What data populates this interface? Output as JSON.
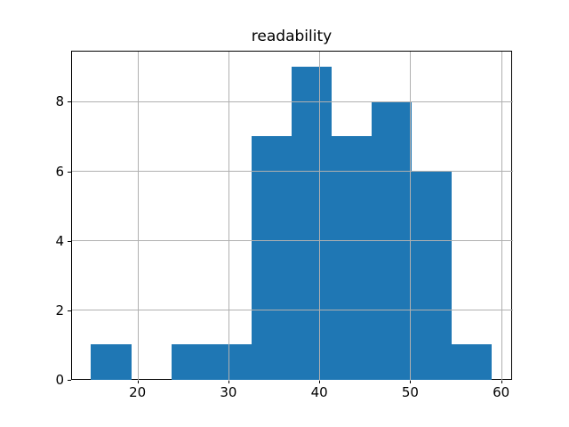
{
  "chart_data": {
    "type": "bar",
    "subtype": "histogram",
    "title": "readability",
    "xlabel": "",
    "ylabel": "",
    "bin_edges": [
      14.9,
      19.31,
      23.72,
      28.13,
      32.54,
      36.95,
      41.36,
      45.77,
      50.18,
      54.59,
      59.0
    ],
    "counts": [
      1,
      0,
      1,
      1,
      7,
      9,
      7,
      8,
      6,
      1
    ],
    "x_ticks": [
      20,
      30,
      40,
      50,
      60
    ],
    "y_ticks": [
      0,
      2,
      4,
      6,
      8
    ],
    "xlim": [
      12.7,
      61.21
    ],
    "ylim": [
      0,
      9.45
    ],
    "grid": true,
    "legend": null,
    "colors": {
      "bar": "#1f77b4",
      "grid": "#b0b0b0",
      "spine": "#000000",
      "text": "#000000",
      "background": "#ffffff"
    }
  }
}
